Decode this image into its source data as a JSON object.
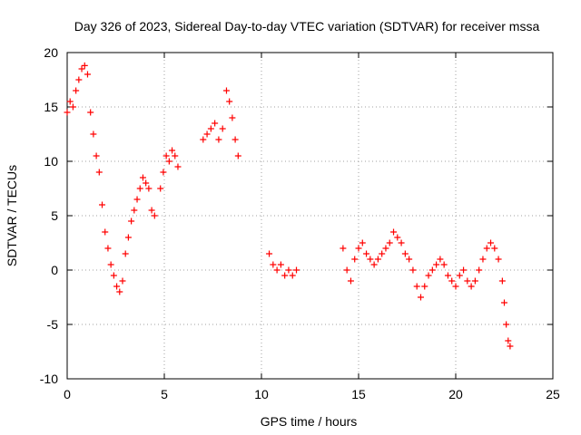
{
  "chart_data": {
    "type": "scatter",
    "title": "Day 326 of 2023, Sidereal Day-to-day VTEC variation (SDTVAR) for receiver mssa",
    "xlabel": "GPS time / hours",
    "ylabel": "SDTVAR / TECUs",
    "xlim": [
      0,
      25
    ],
    "ylim": [
      -10,
      20
    ],
    "xticks": [
      "0",
      "5",
      "10",
      "15",
      "20",
      "25"
    ],
    "yticks": [
      "-10",
      "-5",
      "0",
      "5",
      "10",
      "15",
      "20"
    ],
    "grid": true,
    "marker": "+",
    "color": "#ff0000",
    "series": [
      {
        "name": "mssa",
        "x": [
          0.0,
          0.15,
          0.3,
          0.45,
          0.6,
          0.75,
          0.9,
          1.05,
          1.2,
          1.35,
          1.5,
          1.65,
          1.8,
          1.95,
          2.1,
          2.25,
          2.4,
          2.55,
          2.7,
          2.85,
          3.0,
          3.15,
          3.3,
          3.45,
          3.6,
          3.75,
          3.9,
          4.05,
          4.2,
          4.35,
          4.5,
          4.8,
          4.95,
          5.1,
          5.25,
          5.4,
          5.55,
          5.7,
          7.0,
          7.2,
          7.4,
          7.6,
          7.8,
          8.0,
          8.2,
          8.35,
          8.5,
          8.65,
          8.8,
          10.4,
          10.6,
          10.8,
          11.0,
          11.2,
          11.4,
          11.6,
          11.8,
          14.2,
          14.4,
          14.6,
          14.8,
          15.0,
          15.2,
          15.4,
          15.6,
          15.8,
          16.0,
          16.2,
          16.4,
          16.6,
          16.8,
          17.0,
          17.2,
          17.4,
          17.6,
          17.8,
          18.0,
          18.2,
          18.4,
          18.6,
          18.8,
          19.0,
          19.2,
          19.4,
          19.6,
          19.8,
          20.0,
          20.2,
          20.4,
          20.6,
          20.8,
          21.0,
          21.2,
          21.4,
          21.6,
          21.8,
          22.0,
          22.2,
          22.4,
          22.5,
          22.6,
          22.7,
          22.8
        ],
        "y": [
          14.5,
          15.5,
          15.0,
          16.5,
          17.5,
          18.5,
          18.8,
          18.0,
          14.5,
          12.5,
          10.5,
          9.0,
          6.0,
          3.5,
          2.0,
          0.5,
          -0.5,
          -1.5,
          -2.0,
          -1.0,
          1.5,
          3.0,
          4.5,
          5.5,
          6.5,
          7.5,
          8.5,
          8.0,
          7.5,
          5.5,
          5.0,
          7.5,
          9.0,
          10.5,
          10.0,
          11.0,
          10.5,
          9.5,
          12.0,
          12.5,
          13.0,
          13.5,
          12.0,
          13.0,
          16.5,
          15.5,
          14.0,
          12.0,
          10.5,
          1.5,
          0.5,
          0.0,
          0.5,
          -0.5,
          0.0,
          -0.5,
          0.0,
          2.0,
          0.0,
          -1.0,
          1.0,
          2.0,
          2.5,
          1.5,
          1.0,
          0.5,
          1.0,
          1.5,
          2.0,
          2.5,
          3.5,
          3.0,
          2.5,
          1.5,
          1.0,
          0.0,
          -1.5,
          -2.5,
          -1.5,
          -0.5,
          0.0,
          0.5,
          1.0,
          0.5,
          -0.5,
          -1.0,
          -1.5,
          -0.5,
          0.0,
          -1.0,
          -1.5,
          -1.0,
          0.0,
          1.0,
          2.0,
          2.5,
          2.0,
          1.0,
          -1.0,
          -3.0,
          -5.0,
          -6.5,
          -7.0
        ]
      }
    ]
  }
}
